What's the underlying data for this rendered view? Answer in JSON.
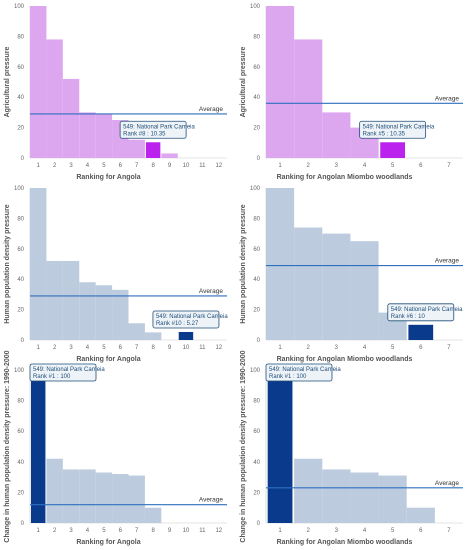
{
  "chart_data": [
    {
      "id": "p1",
      "type": "bar",
      "ylabel": "Agricultural pressure",
      "xlabel": "Ranking for Angola",
      "categories": [
        "1",
        "2",
        "3",
        "4",
        "5",
        "6",
        "7",
        "8",
        "9",
        "10",
        "11",
        "12"
      ],
      "values": [
        100,
        78,
        52,
        30,
        29,
        25,
        12,
        10.35,
        3,
        0,
        0,
        0
      ],
      "highlight_index": 7,
      "ylim": [
        0,
        100
      ],
      "y_ticks": [
        0,
        20,
        40,
        60,
        80,
        100
      ],
      "average": 29,
      "average_label": "Average",
      "tooltip": {
        "line1": "549: National Park Cameia",
        "line2": "Rank #8 : 10.35"
      },
      "bar_color": "#dda7f0",
      "highlight_color": "#bb22ee"
    },
    {
      "id": "p2",
      "type": "bar",
      "ylabel": "Agricultural pressure",
      "xlabel": "Ranking for Angolan Miombo woodlands",
      "categories": [
        "1",
        "2",
        "3",
        "4",
        "5",
        "6",
        "7"
      ],
      "values": [
        100,
        78,
        30,
        20,
        10.35,
        0,
        0
      ],
      "highlight_index": 4,
      "ylim": [
        0,
        100
      ],
      "y_ticks": [
        0,
        20,
        40,
        60,
        80,
        100
      ],
      "average": 36,
      "average_label": "Average",
      "tooltip": {
        "line1": "549: National Park Cameia",
        "line2": "Rank #5 : 10.35"
      },
      "bar_color": "#dda7f0",
      "highlight_color": "#bb22ee"
    },
    {
      "id": "p3",
      "type": "bar",
      "ylabel": "Human population density pressure",
      "xlabel": "Ranking for Angola",
      "categories": [
        "1",
        "2",
        "3",
        "4",
        "5",
        "6",
        "7",
        "8",
        "9",
        "10",
        "11",
        "12"
      ],
      "values": [
        100,
        52,
        52,
        38,
        36,
        33,
        11,
        5,
        0,
        5.27,
        0,
        0
      ],
      "highlight_index": 9,
      "ylim": [
        0,
        100
      ],
      "y_ticks": [
        0,
        20,
        40,
        60,
        80,
        100
      ],
      "average": 29,
      "average_label": "Average",
      "tooltip": {
        "line1": "549: National Park Cameia",
        "line2": "Rank #10 : 5.27"
      },
      "bar_color": "#bccbde",
      "highlight_color": "#0a3a8c"
    },
    {
      "id": "p4",
      "type": "bar",
      "ylabel": "Human population density pressure",
      "xlabel": "Ranking for Angolan Miombo woodlands",
      "categories": [
        "1",
        "2",
        "3",
        "4",
        "5",
        "6",
        "7"
      ],
      "values": [
        100,
        74,
        70,
        65,
        18,
        10,
        0
      ],
      "highlight_index": 5,
      "ylim": [
        0,
        100
      ],
      "y_ticks": [
        0,
        20,
        40,
        60,
        80,
        100
      ],
      "average": 49,
      "average_label": "Average",
      "tooltip": {
        "line1": "549: National Park Cameia",
        "line2": "Rank #6 : 10"
      },
      "bar_color": "#bccbde",
      "highlight_color": "#0a3a8c"
    },
    {
      "id": "p5",
      "type": "bar",
      "ylabel": "Change in human population density pressure: 1990-2000",
      "xlabel": "Ranking for Angola",
      "categories": [
        "1",
        "2",
        "3",
        "4",
        "5",
        "6",
        "7",
        "8",
        "9",
        "10",
        "11",
        "12"
      ],
      "values": [
        100,
        42,
        35,
        35,
        33,
        32,
        31,
        10,
        0,
        0,
        0,
        0
      ],
      "highlight_index": 0,
      "ylim": [
        0,
        100
      ],
      "y_ticks": [
        0,
        20,
        40,
        60,
        80,
        100
      ],
      "average": 12,
      "average_label": "Average",
      "tooltip": {
        "line1": "549: National Park Cameia",
        "line2": "Rank #1 : 100"
      },
      "bar_color": "#bccbde",
      "highlight_color": "#0a3a8c"
    },
    {
      "id": "p6",
      "type": "bar",
      "ylabel": "Change in human population density pressure: 1990-2000",
      "xlabel": "Ranking for Angolan Miombo woodlands",
      "categories": [
        "1",
        "2",
        "3",
        "4",
        "5",
        "6",
        "7"
      ],
      "values": [
        100,
        42,
        35,
        33,
        31,
        10,
        0
      ],
      "highlight_index": 0,
      "ylim": [
        0,
        100
      ],
      "y_ticks": [
        0,
        20,
        40,
        60,
        80,
        100
      ],
      "average": 23,
      "average_label": "Average",
      "tooltip": {
        "line1": "549: National Park Cameia",
        "line2": "Rank #1 : 100"
      },
      "bar_color": "#bccbde",
      "highlight_color": "#0a3a8c"
    }
  ],
  "colors": {
    "average_line": "#2f6fbf",
    "tooltip_border": "#1f4e79",
    "tooltip_bg": "#eef3f8"
  }
}
